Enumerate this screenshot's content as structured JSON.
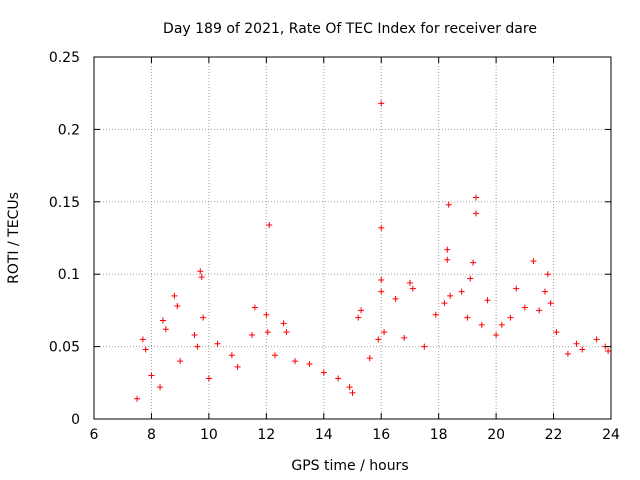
{
  "chart_data": {
    "type": "scatter",
    "title": "Day 189 of 2021, Rate Of TEC Index for receiver dare",
    "xlabel": "GPS time / hours",
    "ylabel": "ROTI / TECUs",
    "xlim": [
      6,
      24
    ],
    "ylim": [
      0,
      0.25
    ],
    "x_ticks": [
      6,
      8,
      10,
      12,
      14,
      16,
      18,
      20,
      22,
      24
    ],
    "x_tick_labels": [
      "6",
      "8",
      "10",
      "12",
      "14",
      "16",
      "18",
      "20",
      "22",
      "24"
    ],
    "y_ticks": [
      0,
      0.05,
      0.1,
      0.15,
      0.2,
      0.25
    ],
    "y_tick_labels": [
      "0",
      "0.05",
      "0.1",
      "0.15",
      "0.2",
      "0.25"
    ],
    "grid": true,
    "marker": "+",
    "color": "#ff0000",
    "series": [
      {
        "points": [
          [
            7.5,
            0.014
          ],
          [
            7.7,
            0.055
          ],
          [
            7.8,
            0.048
          ],
          [
            8.0,
            0.03
          ],
          [
            8.3,
            0.022
          ],
          [
            8.4,
            0.068
          ],
          [
            8.5,
            0.062
          ],
          [
            8.8,
            0.085
          ],
          [
            8.9,
            0.078
          ],
          [
            9.0,
            0.04
          ],
          [
            9.5,
            0.058
          ],
          [
            9.6,
            0.05
          ],
          [
            9.7,
            0.102
          ],
          [
            9.75,
            0.098
          ],
          [
            9.8,
            0.07
          ],
          [
            10.0,
            0.028
          ],
          [
            10.3,
            0.052
          ],
          [
            10.8,
            0.044
          ],
          [
            11.0,
            0.036
          ],
          [
            11.5,
            0.058
          ],
          [
            11.6,
            0.077
          ],
          [
            12.0,
            0.072
          ],
          [
            12.05,
            0.06
          ],
          [
            12.1,
            0.134
          ],
          [
            12.3,
            0.044
          ],
          [
            12.6,
            0.066
          ],
          [
            12.7,
            0.06
          ],
          [
            13.0,
            0.04
          ],
          [
            13.5,
            0.038
          ],
          [
            14.0,
            0.032
          ],
          [
            14.5,
            0.028
          ],
          [
            14.9,
            0.022
          ],
          [
            15.0,
            0.018
          ],
          [
            15.2,
            0.07
          ],
          [
            15.3,
            0.075
          ],
          [
            15.6,
            0.042
          ],
          [
            15.9,
            0.055
          ],
          [
            16.0,
            0.218
          ],
          [
            16.0,
            0.132
          ],
          [
            16.0,
            0.096
          ],
          [
            16.0,
            0.088
          ],
          [
            16.1,
            0.06
          ],
          [
            16.5,
            0.083
          ],
          [
            16.8,
            0.056
          ],
          [
            17.0,
            0.094
          ],
          [
            17.1,
            0.09
          ],
          [
            17.5,
            0.05
          ],
          [
            17.9,
            0.072
          ],
          [
            18.2,
            0.08
          ],
          [
            18.3,
            0.117
          ],
          [
            18.3,
            0.11
          ],
          [
            18.35,
            0.148
          ],
          [
            18.4,
            0.085
          ],
          [
            18.8,
            0.088
          ],
          [
            19.0,
            0.07
          ],
          [
            19.1,
            0.097
          ],
          [
            19.2,
            0.108
          ],
          [
            19.3,
            0.153
          ],
          [
            19.3,
            0.142
          ],
          [
            19.5,
            0.065
          ],
          [
            19.7,
            0.082
          ],
          [
            20.0,
            0.058
          ],
          [
            20.2,
            0.065
          ],
          [
            20.5,
            0.07
          ],
          [
            20.7,
            0.09
          ],
          [
            21.0,
            0.077
          ],
          [
            21.3,
            0.109
          ],
          [
            21.5,
            0.075
          ],
          [
            21.7,
            0.088
          ],
          [
            21.8,
            0.1
          ],
          [
            21.9,
            0.08
          ],
          [
            22.1,
            0.06
          ],
          [
            22.5,
            0.045
          ],
          [
            22.8,
            0.052
          ],
          [
            23.0,
            0.048
          ],
          [
            23.5,
            0.055
          ],
          [
            23.8,
            0.05
          ],
          [
            23.9,
            0.047
          ]
        ]
      }
    ]
  }
}
